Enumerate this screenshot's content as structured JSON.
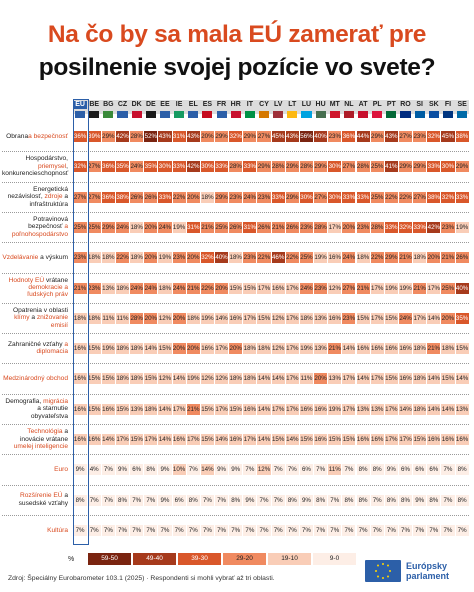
{
  "title_line1": "Na čo by sa mala EÚ zamerať pre",
  "title_line2": "posilnenie svojej pozície vo svete?",
  "chart_data": {
    "type": "heatmap",
    "unit": "%",
    "columns": [
      "EU",
      "BE",
      "BG",
      "CZ",
      "DK",
      "DE",
      "EE",
      "IE",
      "EL",
      "ES",
      "FR",
      "HR",
      "IT",
      "CY",
      "LV",
      "LT",
      "LU",
      "HU",
      "MT",
      "NL",
      "AT",
      "PL",
      "PT",
      "RO",
      "SI",
      "SK",
      "FI",
      "SE"
    ],
    "rows": [
      {
        "label_parts": [
          {
            "t": "Obrana"
          },
          {
            "t": "a bezpečnosť",
            "hl": true
          }
        ],
        "values": [
          36,
          39,
          29,
          42,
          28,
          52,
          43,
          31,
          43,
          20,
          29,
          32,
          29,
          27,
          45,
          43,
          56,
          40,
          23,
          36,
          44,
          29,
          43,
          27,
          23,
          32,
          45,
          38
        ]
      },
      {
        "label_parts": [
          {
            "t": "Hospodárstvo, "
          },
          {
            "t": "priemysel",
            "hl": true
          },
          {
            "t": ", konkurencieschopnosť"
          }
        ],
        "values": [
          32,
          27,
          36,
          35,
          24,
          35,
          30,
          33,
          42,
          30,
          33,
          28,
          33,
          29,
          28,
          29,
          28,
          29,
          30,
          27,
          28,
          25,
          41,
          29,
          29,
          33,
          30,
          29
        ]
      },
      {
        "label_parts": [
          {
            "t": "Energetická nezávislosť, "
          },
          {
            "t": "zdroje",
            "hl": true
          },
          {
            "t": " a infraštruktúra"
          }
        ],
        "values": [
          27,
          27,
          36,
          38,
          26,
          26,
          33,
          22,
          20,
          18,
          29,
          23,
          24,
          23,
          33,
          29,
          30,
          27,
          30,
          33,
          33,
          25,
          22,
          22,
          27,
          38,
          32,
          33
        ]
      },
      {
        "label_parts": [
          {
            "t": "Potravinová bezpečnosť "
          },
          {
            "t": "a poľnohospodárstvo",
            "hl": true
          }
        ],
        "values": [
          25,
          25,
          29,
          24,
          18,
          20,
          24,
          19,
          31,
          21,
          25,
          26,
          31,
          26,
          21,
          26,
          23,
          28,
          17,
          20,
          23,
          28,
          33,
          32,
          33,
          42,
          23,
          19
        ]
      },
      {
        "label_parts": [
          {
            "t": "Vzdelávanie",
            "hl": true
          },
          {
            "t": " a výskum"
          }
        ],
        "values": [
          23,
          18,
          18,
          22,
          18,
          20,
          19,
          23,
          20,
          32,
          40,
          18,
          23,
          22,
          46,
          22,
          25,
          19,
          16,
          24,
          18,
          22,
          29,
          21,
          18,
          20,
          21,
          26
        ]
      },
      {
        "label_parts": [
          {
            "t": "Hodnoty EÚ",
            "hl": true
          },
          {
            "t": " vrátane "
          },
          {
            "t": "demokracie a",
            "hl": true
          },
          {
            "t": " "
          },
          {
            "t": "ľudských práv",
            "hl": true
          }
        ],
        "values": [
          21,
          23,
          13,
          18,
          24,
          24,
          18,
          24,
          21,
          22,
          20,
          15,
          15,
          17,
          16,
          17,
          24,
          23,
          12,
          27,
          21,
          17,
          19,
          19,
          21,
          17,
          25,
          40
        ]
      },
      {
        "label_parts": [
          {
            "t": "Opatrenia v oblasti "
          },
          {
            "t": "klímy",
            "hl": true
          },
          {
            "t": " a "
          },
          {
            "t": "znižovanie emisií",
            "hl": true
          }
        ],
        "values": [
          18,
          18,
          11,
          11,
          28,
          20,
          12,
          20,
          18,
          19,
          14,
          16,
          17,
          15,
          12,
          17,
          18,
          13,
          16,
          23,
          15,
          17,
          15,
          24,
          17,
          14,
          20,
          35
        ]
      },
      {
        "label_parts": [
          {
            "t": "Zahraničné vzťahy "
          },
          {
            "t": "a diplomacia",
            "hl": true
          }
        ],
        "values": [
          16,
          15,
          19,
          18,
          18,
          14,
          15,
          20,
          20,
          16,
          17,
          20,
          18,
          18,
          12,
          17,
          19,
          13,
          21,
          14,
          16,
          16,
          16,
          16,
          18,
          21,
          18,
          15
        ]
      },
      {
        "label_parts": [
          {
            "t": "Medzinárodný obchod",
            "hl": true
          }
        ],
        "values": [
          16,
          15,
          15,
          18,
          18,
          15,
          12,
          14,
          19,
          12,
          12,
          18,
          18,
          14,
          14,
          17,
          11,
          20,
          13,
          17,
          14,
          17,
          15,
          16,
          18,
          14,
          15,
          14
        ]
      },
      {
        "label_parts": [
          {
            "t": "Demografia, "
          },
          {
            "t": "migrácia",
            "hl": true
          },
          {
            "t": " a starnutie obyvateľstva"
          }
        ],
        "values": [
          16,
          15,
          16,
          15,
          13,
          18,
          14,
          17,
          21,
          15,
          17,
          15,
          16,
          14,
          17,
          17,
          16,
          16,
          19,
          17,
          13,
          13,
          17,
          14,
          18,
          14,
          14,
          13
        ]
      },
      {
        "label_parts": [
          {
            "t": "Technológia",
            "hl": true
          },
          {
            "t": " a inovácie vrátane "
          },
          {
            "t": "umelej inteligencie",
            "hl": true
          }
        ],
        "values": [
          16,
          16,
          14,
          17,
          15,
          17,
          14,
          16,
          17,
          15,
          14,
          16,
          17,
          14,
          15,
          14,
          15,
          16,
          15,
          15,
          16,
          16,
          17,
          17,
          15,
          16,
          16,
          16
        ]
      },
      {
        "label_parts": [
          {
            "t": "Euro",
            "hl": true
          }
        ],
        "values": [
          9,
          4,
          7,
          9,
          6,
          8,
          9,
          10,
          7,
          14,
          9,
          9,
          7,
          12,
          7,
          7,
          6,
          7,
          11,
          7,
          8,
          8,
          9,
          6,
          6,
          6,
          7,
          8
        ]
      },
      {
        "label_parts": [
          {
            "t": "Rozšírenie EÚ",
            "hl": true
          },
          {
            "t": " a susedské vzťahy"
          }
        ],
        "values": [
          8,
          7,
          7,
          8,
          7,
          7,
          9,
          6,
          8,
          7,
          7,
          8,
          9,
          7,
          7,
          8,
          9,
          8,
          7,
          8,
          8,
          7,
          8,
          8,
          9,
          8,
          7,
          8
        ]
      },
      {
        "label_parts": [
          {
            "t": "Kultúra",
            "hl": true
          }
        ],
        "values": [
          7,
          7,
          7,
          7,
          7,
          7,
          7,
          7,
          7,
          7,
          7,
          7,
          7,
          7,
          7,
          7,
          7,
          7,
          7,
          7,
          7,
          7,
          7,
          7,
          7,
          7,
          7,
          7
        ]
      }
    ],
    "legend": {
      "unit_label": "%",
      "bins": [
        {
          "label": "59-50",
          "color": "#7a2410",
          "text": "#ffffff"
        },
        {
          "label": "49-40",
          "color": "#a63a1c",
          "text": "#ffffff"
        },
        {
          "label": "39-30",
          "color": "#d9572a",
          "text": "#ffffff"
        },
        {
          "label": "29-20",
          "color": "#f08a60",
          "text": "#222222"
        },
        {
          "label": "19-10",
          "color": "#f9cdb7",
          "text": "#222222"
        },
        {
          "label": "9-0",
          "color": "#fdeee6",
          "text": "#222222"
        }
      ]
    }
  },
  "source": "Zdroj: Špeciálny Eurobarometer 103.1 (2025) · Respondenti si mohli vybrať až tri oblasti.",
  "logo": {
    "line1": "Európsky",
    "line2": "parlament",
    "icon": "european-parliament-logo"
  }
}
